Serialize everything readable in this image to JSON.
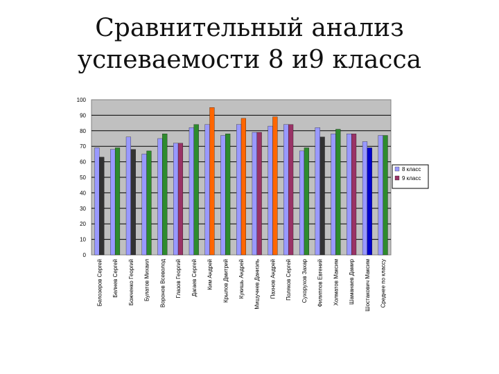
{
  "slide": {
    "title_line1": "Сравнительный анализ",
    "title_line2": "успеваемости 8 и9 класса"
  },
  "chart_data": {
    "type": "bar",
    "categories": [
      "Белозеров Сергей",
      "Белнев Сергей",
      "Божченко Георгий",
      "Булатов Михаил",
      "Воронов Всеволод",
      "Глазов Георгий",
      "Дагаев Сергей",
      "Ким Андрей",
      "Крылов Дмитрий",
      "Кукишь Андрей",
      "Мишучнев Даниэль",
      "Пахнов Андрей",
      "Поляков Сергей",
      "Сухорухов Захар",
      "Филиппов Евгений",
      "Холматов Максим",
      "Шаманаев Дамир",
      "Шостакович Максим",
      "Среднее по классу"
    ],
    "series": [
      {
        "name": "8 класс",
        "values": [
          69,
          68,
          76,
          65,
          75,
          72,
          82,
          84,
          77,
          84,
          79,
          83,
          84,
          67,
          82,
          78,
          78,
          73,
          77
        ]
      },
      {
        "name": "9 класс",
        "values": [
          63,
          69,
          68,
          67,
          78,
          72,
          84,
          95,
          78,
          88,
          79,
          89,
          84,
          69,
          76,
          81,
          78,
          69,
          77
        ]
      }
    ],
    "series_colors": [
      [
        "#9999ff",
        "#9999ff",
        "#9999ff",
        "#9999ff",
        "#9999ff",
        "#9999ff",
        "#9999ff",
        "#9999ff",
        "#9999ff",
        "#9999ff",
        "#9999ff",
        "#9999ff",
        "#9999ff",
        "#9999ff",
        "#9999ff",
        "#9999ff",
        "#9999ff",
        "#9999ff",
        "#9999ff"
      ],
      [
        "#333333",
        "#2e8b2e",
        "#333333",
        "#2e8b2e",
        "#2e8b2e",
        "#993366",
        "#2e8b2e",
        "#ff6600",
        "#2e8b2e",
        "#ff6600",
        "#993366",
        "#ff6600",
        "#993366",
        "#2e8b2e",
        "#333333",
        "#2e8b2e",
        "#993366",
        "#0000cc",
        "#2e8b2e"
      ]
    ],
    "legend_colors": [
      "#9999ff",
      "#993366"
    ],
    "ylim": [
      0,
      100
    ],
    "yticks": [
      "0",
      "10",
      "20",
      "30",
      "40",
      "50",
      "60",
      "70",
      "80",
      "90",
      "100"
    ],
    "grid": "y-major",
    "legend_position": "right",
    "plot_background": "#c0c0c0"
  }
}
